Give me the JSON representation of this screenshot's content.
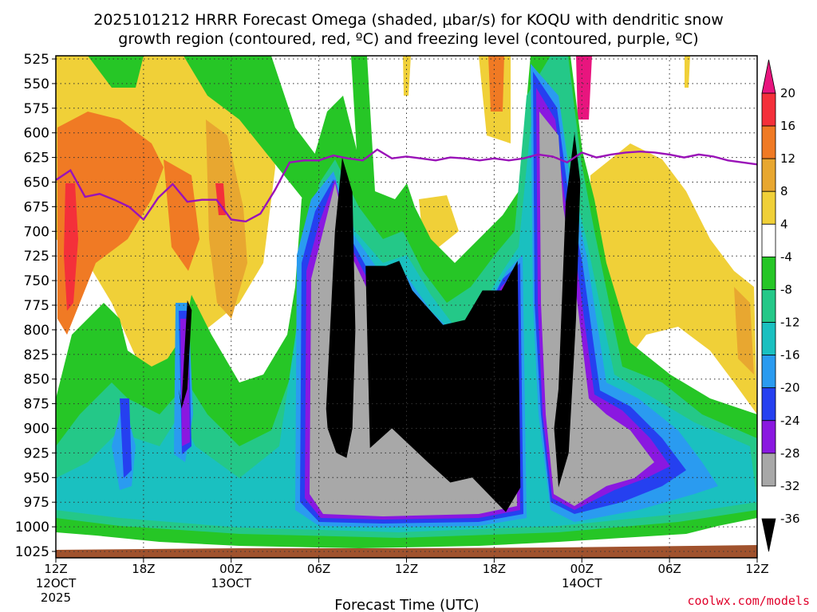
{
  "chart_data": {
    "type": "heatmap",
    "title_line1": "2025101212 HRRR Forecast Omega (shaded, μbar/s) for KOQU with dendritic snow",
    "title_line2": "growth region (contoured, red, ºC) and freezing level (contoured, purple, ºC)",
    "xlabel": "Forecast Time (UTC)",
    "credit": "coolwx.com/models",
    "y_levels": [
      "525",
      "550",
      "575",
      "600",
      "625",
      "650",
      "675",
      "700",
      "725",
      "750",
      "775",
      "800",
      "825",
      "850",
      "875",
      "900",
      "925",
      "950",
      "975",
      "1000",
      "1025"
    ],
    "x_ticks": [
      {
        "hour": 0,
        "label": "12Z",
        "sub": "12OCT",
        "sub2": "2025"
      },
      {
        "hour": 6,
        "label": "18Z",
        "sub": "",
        "sub2": ""
      },
      {
        "hour": 12,
        "label": "00Z",
        "sub": "13OCT",
        "sub2": ""
      },
      {
        "hour": 18,
        "label": "06Z",
        "sub": "",
        "sub2": ""
      },
      {
        "hour": 24,
        "label": "12Z",
        "sub": "",
        "sub2": ""
      },
      {
        "hour": 30,
        "label": "18Z",
        "sub": "",
        "sub2": ""
      },
      {
        "hour": 36,
        "label": "00Z",
        "sub": "14OCT",
        "sub2": ""
      },
      {
        "hour": 42,
        "label": "06Z",
        "sub": "",
        "sub2": ""
      },
      {
        "hour": 48,
        "label": "12Z",
        "sub": "",
        "sub2": ""
      }
    ],
    "xlim": [
      0,
      48
    ],
    "ylim_hpa": [
      525,
      1025
    ],
    "colorbar": {
      "labels": [
        "20",
        "16",
        "12",
        "8",
        "4",
        "-4",
        "-8",
        "-12",
        "-16",
        "-20",
        "-24",
        "-28",
        "-32",
        "-36"
      ],
      "colors": [
        "#e8157e",
        "#f4303a",
        "#f07a24",
        "#e8a730",
        "#f0d038",
        "#ffffff",
        "#26c626",
        "#24c888",
        "#1ac0c0",
        "#2a9bf0",
        "#2540f0",
        "#8a18e0",
        "#a8a8a8",
        "#000000"
      ]
    },
    "freezing_level": {
      "name": "freezing level 0ºC",
      "color": "#9a12b8",
      "x_hours": [
        0,
        1,
        2,
        3,
        4,
        5,
        6,
        7,
        8,
        9,
        10,
        11,
        12,
        13,
        14,
        15,
        16,
        17,
        18,
        19,
        20,
        21,
        22,
        23,
        24,
        25,
        26,
        27,
        28,
        29,
        30,
        31,
        32,
        33,
        34,
        35,
        36,
        37,
        38,
        39,
        40,
        41,
        42,
        43,
        44,
        45,
        46,
        47,
        48
      ],
      "p_hpa": [
        648,
        638,
        665,
        662,
        668,
        675,
        688,
        666,
        652,
        670,
        668,
        668,
        688,
        690,
        682,
        658,
        630,
        628,
        628,
        623,
        626,
        628,
        617,
        626,
        624,
        626,
        628,
        625,
        626,
        628,
        626,
        628,
        626,
        622,
        624,
        630,
        620,
        625,
        622,
        620,
        619,
        620,
        622,
        625,
        622,
        624,
        628,
        630,
        632
      ]
    },
    "omega_fields": [
      {
        "name": "strong ascent core 06Z-08Z 13OCT",
        "x_hours": [
          18.5,
          19.1,
          19.6,
          20.3,
          20.5,
          20.3,
          19.9,
          19.2,
          18.6,
          18.4
        ],
        "p_hpa": [
          880,
          700,
          625,
          660,
          800,
          900,
          930,
          925,
          900,
          860
        ],
        "value": -36
      },
      {
        "name": "strong ascent core 09Z-20Z 13OCT",
        "x_hours": [
          21.2,
          22.6,
          23.5,
          24.4,
          26.5,
          28.0,
          29.2,
          30.5,
          31.6,
          31.8,
          30.8,
          28.5,
          27.0,
          25.5,
          23.0,
          21.5
        ],
        "p_hpa": [
          735,
          735,
          730,
          760,
          795,
          790,
          760,
          760,
          730,
          960,
          985,
          950,
          955,
          935,
          900,
          920
        ],
        "value": -36
      },
      {
        "name": "strong ascent core 22Z-00Z 13/14OCT",
        "x_hours": [
          34.4,
          34.9,
          35.5,
          35.9,
          35.6,
          35.1,
          34.4,
          34.1
        ],
        "p_hpa": [
          860,
          670,
          600,
          650,
          790,
          925,
          960,
          900
        ],
        "value": -36
      },
      {
        "name": "ascent core 20Z 12OCT",
        "x_hours": [
          8.6,
          9.0,
          9.3,
          9.0,
          8.6,
          8.4
        ],
        "p_hpa": [
          875,
          770,
          780,
          860,
          880,
          860
        ],
        "value": -36
      }
    ]
  }
}
